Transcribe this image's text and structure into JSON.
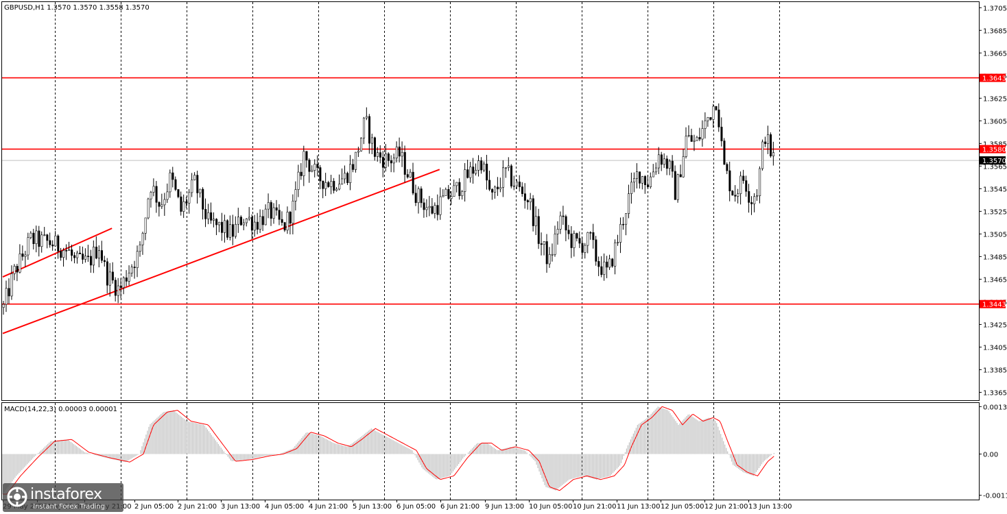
{
  "chart_data": {
    "type": "candlestick",
    "header": "GBPUSD,H1  1.3570 1.3570 1.3558 1.3570",
    "symbol": "GBPUSD",
    "timeframe": "H1",
    "last_price": 1.357,
    "price_ylim": [
      1.3358,
      1.371
    ],
    "price_ticks": [
      "1.3705",
      "1.3685",
      "1.3665",
      "1.3645",
      "1.3625",
      "1.3605",
      "1.3585",
      "1.3565",
      "1.3545",
      "1.3525",
      "1.3505",
      "1.3485",
      "1.3465",
      "1.3445",
      "1.3425",
      "1.3405",
      "1.3385",
      "1.3365"
    ],
    "x_tick_labels": [
      "29 May 2025",
      "30 May 05:00",
      "30 May 21:00",
      "2 Jun 05:00",
      "2 Jun 21:00",
      "3 Jun 13:00",
      "4 Jun 05:00",
      "4 Jun 21:00",
      "5 Jun 13:00",
      "6 Jun 05:00",
      "6 Jun 21:00",
      "9 Jun 13:00",
      "10 Jun 05:00",
      "10 Jun 21:00",
      "11 Jun 13:00",
      "12 Jun 05:00",
      "12 Jun 21:00",
      "13 Jun 13:00"
    ],
    "levels": [
      {
        "value": 1.3643,
        "label": "1.3643",
        "color": "#ff0000"
      },
      {
        "value": 1.358,
        "label": "1.3580",
        "color": "#ff0000"
      },
      {
        "value": 1.3443,
        "label": "1.3443",
        "color": "#ff0000"
      }
    ],
    "last_price_label": "1.3570",
    "trendlines": [
      {
        "from_bar": 0,
        "from_price": 1.3467,
        "to_bar": 160,
        "to_price": 1.351,
        "color": "#ff0000"
      },
      {
        "from_bar": 0,
        "from_price": 1.3417,
        "to_bar": 640,
        "to_price": 1.3562,
        "color": "#ff0000"
      }
    ],
    "price_path": [
      [
        0,
        1.344
      ],
      [
        15,
        1.347
      ],
      [
        40,
        1.35
      ],
      [
        70,
        1.3497
      ],
      [
        95,
        1.349
      ],
      [
        105,
        1.348
      ],
      [
        125,
        1.348
      ],
      [
        140,
        1.3495
      ],
      [
        150,
        1.347
      ],
      [
        170,
        1.3455
      ],
      [
        185,
        1.3475
      ],
      [
        200,
        1.349
      ],
      [
        215,
        1.355
      ],
      [
        230,
        1.353
      ],
      [
        245,
        1.3555
      ],
      [
        260,
        1.3525
      ],
      [
        280,
        1.355
      ],
      [
        300,
        1.3515
      ],
      [
        320,
        1.351
      ],
      [
        335,
        1.3505
      ],
      [
        350,
        1.352
      ],
      [
        370,
        1.3515
      ],
      [
        390,
        1.3525
      ],
      [
        410,
        1.351
      ],
      [
        425,
        1.353
      ],
      [
        440,
        1.3575
      ],
      [
        460,
        1.3555
      ],
      [
        480,
        1.355
      ],
      [
        500,
        1.3555
      ],
      [
        515,
        1.357
      ],
      [
        530,
        1.3605
      ],
      [
        545,
        1.3575
      ],
      [
        565,
        1.357
      ],
      [
        580,
        1.3575
      ],
      [
        595,
        1.3555
      ],
      [
        605,
        1.354
      ],
      [
        625,
        1.3525
      ],
      [
        645,
        1.3535
      ],
      [
        665,
        1.3545
      ],
      [
        685,
        1.356
      ],
      [
        700,
        1.357
      ],
      [
        715,
        1.3535
      ],
      [
        735,
        1.356
      ],
      [
        755,
        1.3545
      ],
      [
        770,
        1.3535
      ],
      [
        785,
        1.35
      ],
      [
        800,
        1.348
      ],
      [
        815,
        1.352
      ],
      [
        830,
        1.35
      ],
      [
        845,
        1.3495
      ],
      [
        860,
        1.35
      ],
      [
        870,
        1.348
      ],
      [
        885,
        1.347
      ],
      [
        900,
        1.35
      ],
      [
        915,
        1.3535
      ],
      [
        930,
        1.356
      ],
      [
        945,
        1.355
      ],
      [
        960,
        1.3575
      ],
      [
        975,
        1.3565
      ],
      [
        985,
        1.354
      ],
      [
        1000,
        1.359
      ],
      [
        1015,
        1.3585
      ],
      [
        1030,
        1.3605
      ],
      [
        1045,
        1.3625
      ],
      [
        1055,
        1.3565
      ],
      [
        1070,
        1.354
      ],
      [
        1085,
        1.3555
      ],
      [
        1095,
        1.3535
      ],
      [
        1105,
        1.3545
      ],
      [
        1115,
        1.3595
      ],
      [
        1125,
        1.3575
      ],
      [
        1130,
        1.357
      ]
    ],
    "macd": {
      "label": "MACD(14,22,3) 0.00003 0.00001",
      "ylim": [
        -0.00125,
        0.0014
      ],
      "ticks": [
        "0.0013",
        "0.00",
        "-0.00113"
      ],
      "hist_path": [
        [
          0,
          -0.0011
        ],
        [
          20,
          -0.0006
        ],
        [
          45,
          -0.0001
        ],
        [
          70,
          0.00035
        ],
        [
          95,
          0.0004
        ],
        [
          120,
          5e-05
        ],
        [
          150,
          -0.0001
        ],
        [
          180,
          -0.00022
        ],
        [
          200,
          0.0
        ],
        [
          215,
          0.0008
        ],
        [
          235,
          0.00115
        ],
        [
          250,
          0.0012
        ],
        [
          270,
          0.0009
        ],
        [
          295,
          0.0008
        ],
        [
          315,
          0.0003
        ],
        [
          335,
          -0.0002
        ],
        [
          360,
          -0.00015
        ],
        [
          385,
          -5e-05
        ],
        [
          405,
          0.0
        ],
        [
          425,
          0.00015
        ],
        [
          445,
          0.0006
        ],
        [
          465,
          0.0005
        ],
        [
          485,
          0.0003
        ],
        [
          505,
          0.0002
        ],
        [
          520,
          0.0004
        ],
        [
          540,
          0.0007
        ],
        [
          560,
          0.0005
        ],
        [
          580,
          0.0003
        ],
        [
          600,
          0.0001
        ],
        [
          615,
          -0.0004
        ],
        [
          635,
          -0.0007
        ],
        [
          655,
          -0.0006
        ],
        [
          675,
          -0.0001
        ],
        [
          695,
          0.0003
        ],
        [
          710,
          0.0003
        ],
        [
          725,
          0.0001
        ],
        [
          745,
          0.0002
        ],
        [
          765,
          0.0001
        ],
        [
          780,
          -0.0002
        ],
        [
          795,
          -0.0009
        ],
        [
          810,
          -0.001
        ],
        [
          830,
          -0.0007
        ],
        [
          850,
          -0.0006
        ],
        [
          870,
          -0.0007
        ],
        [
          890,
          -0.0006
        ],
        [
          905,
          -0.0003
        ],
        [
          915,
          0.0002
        ],
        [
          930,
          0.0008
        ],
        [
          945,
          0.001
        ],
        [
          960,
          0.0013
        ],
        [
          975,
          0.0012
        ],
        [
          990,
          0.0008
        ],
        [
          1005,
          0.0011
        ],
        [
          1020,
          0.0009
        ],
        [
          1035,
          0.001
        ],
        [
          1045,
          0.0009
        ],
        [
          1055,
          0.0004
        ],
        [
          1070,
          -0.0003
        ],
        [
          1085,
          -0.0005
        ],
        [
          1100,
          -0.0006
        ],
        [
          1115,
          -0.0002
        ],
        [
          1130,
          3e-05
        ]
      ]
    }
  },
  "watermark": {
    "brand": "instaforex",
    "tagline": "Instant Forex Trading"
  },
  "colors": {
    "grid": "#000000",
    "candle": "#000000",
    "level": "#ff0000",
    "hist": "#c0c0c0",
    "signal": "#ff0000"
  }
}
